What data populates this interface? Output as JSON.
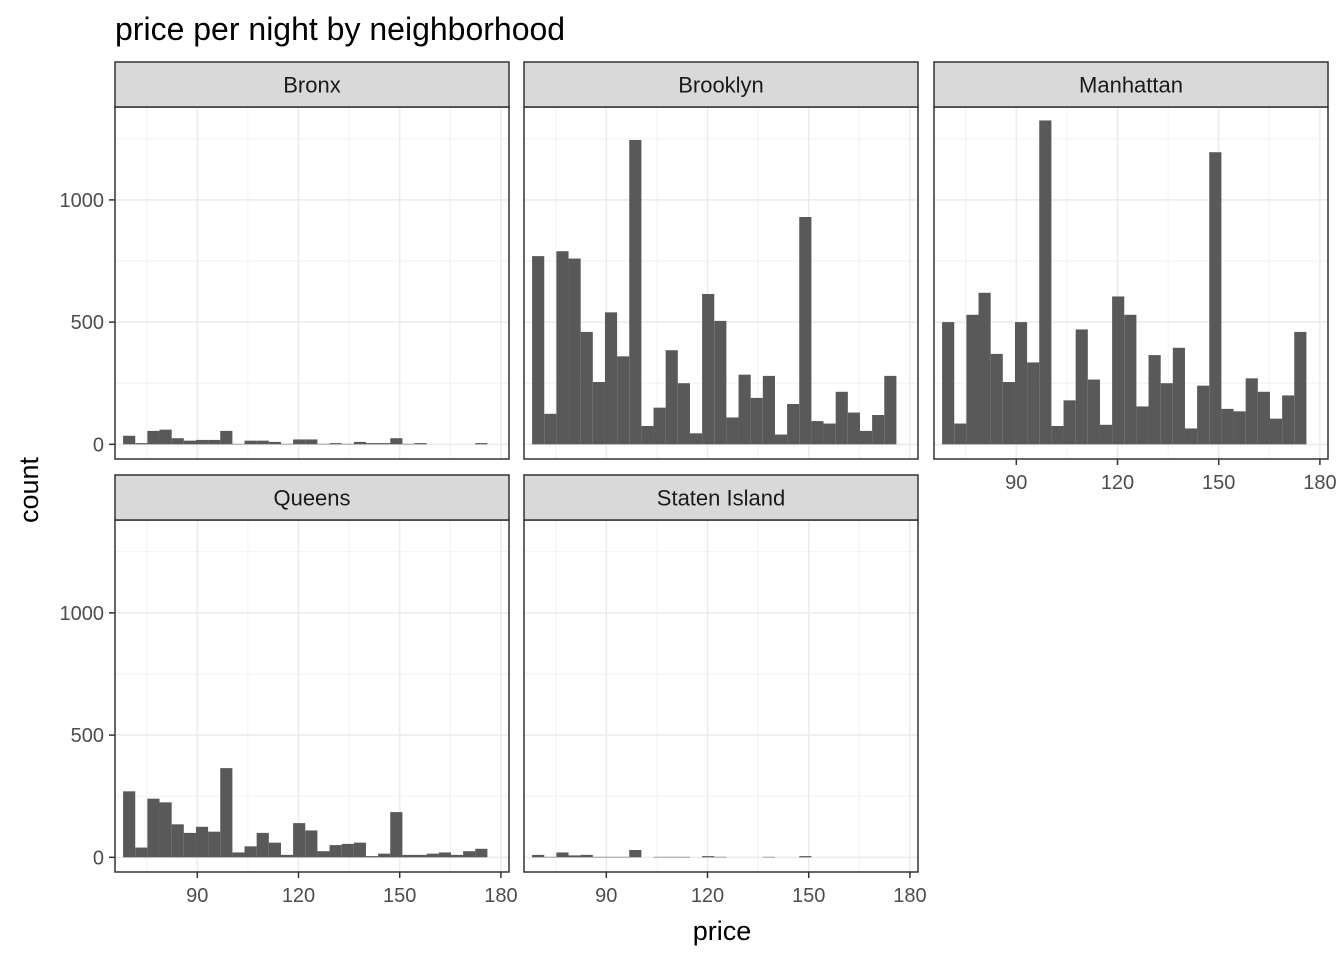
{
  "chart_data": {
    "type": "bar",
    "title": "price per night by neighborhood",
    "xlabel": "price",
    "ylabel": "count",
    "xlim": [
      65.6,
      182.4
    ],
    "ylim": [
      -60,
      1380
    ],
    "x_ticks": [
      90,
      120,
      150,
      180
    ],
    "y_ticks": [
      0,
      500,
      1000
    ],
    "bin_start": 68,
    "bin_width": 3.6,
    "bar_color": "#595959",
    "panels": [
      {
        "name": "Bronx",
        "values": [
          35,
          5,
          55,
          60,
          25,
          15,
          18,
          18,
          55,
          2,
          15,
          15,
          10,
          2,
          20,
          20,
          2,
          5,
          2,
          10,
          5,
          5,
          25,
          2,
          5,
          0,
          0,
          0,
          0,
          5,
          0
        ]
      },
      {
        "name": "Brooklyn",
        "values": [
          770,
          125,
          790,
          760,
          460,
          255,
          540,
          360,
          1245,
          75,
          150,
          385,
          250,
          45,
          615,
          505,
          110,
          285,
          190,
          280,
          40,
          165,
          930,
          95,
          85,
          215,
          130,
          55,
          120,
          280,
          0
        ]
      },
      {
        "name": "Manhattan",
        "values": [
          500,
          85,
          530,
          620,
          370,
          255,
          500,
          335,
          1325,
          75,
          180,
          470,
          265,
          80,
          605,
          530,
          155,
          365,
          250,
          395,
          65,
          240,
          1195,
          145,
          135,
          270,
          215,
          105,
          200,
          460,
          0
        ]
      },
      {
        "name": "Queens",
        "values": [
          270,
          40,
          240,
          225,
          135,
          100,
          125,
          105,
          365,
          20,
          45,
          100,
          60,
          10,
          140,
          110,
          25,
          50,
          55,
          60,
          5,
          15,
          185,
          10,
          10,
          15,
          20,
          10,
          25,
          35,
          0
        ]
      },
      {
        "name": "Staten Island",
        "values": [
          10,
          2,
          20,
          8,
          10,
          2,
          2,
          2,
          30,
          0,
          2,
          2,
          2,
          0,
          5,
          2,
          0,
          0,
          0,
          2,
          0,
          0,
          5,
          0,
          0,
          0,
          0,
          0,
          0,
          0,
          0
        ]
      }
    ]
  }
}
